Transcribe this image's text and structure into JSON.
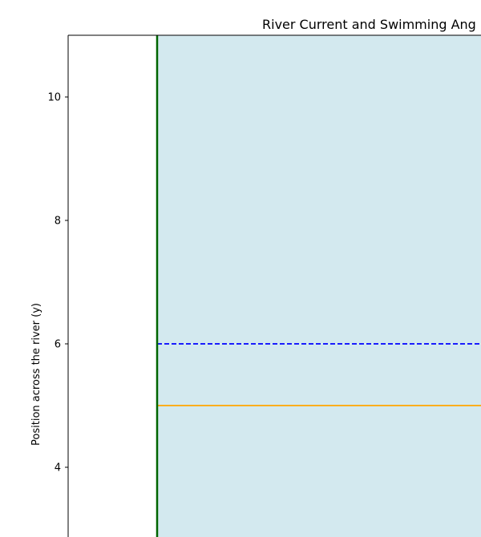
{
  "chart_data": {
    "type": "line",
    "title": "River Current and Swimming Ang",
    "xlabel": "",
    "ylabel": "Position across the river (y)",
    "ylim": [
      2.2,
      11
    ],
    "xlim": [
      -1,
      10
    ],
    "y_ticks": [
      "4",
      "6",
      "8",
      "10"
    ],
    "grid": false,
    "river_region": {
      "x_start": 0,
      "color": "#d3e9ef"
    },
    "series": [
      {
        "orientation": "horizontal",
        "y": 6,
        "style": "dashed",
        "color": "#0000ff"
      },
      {
        "orientation": "horizontal",
        "y": 5,
        "style": "solid",
        "color": "#ffa500"
      },
      {
        "orientation": "vertical",
        "x": 0,
        "style": "solid",
        "color": "#006400"
      }
    ]
  }
}
